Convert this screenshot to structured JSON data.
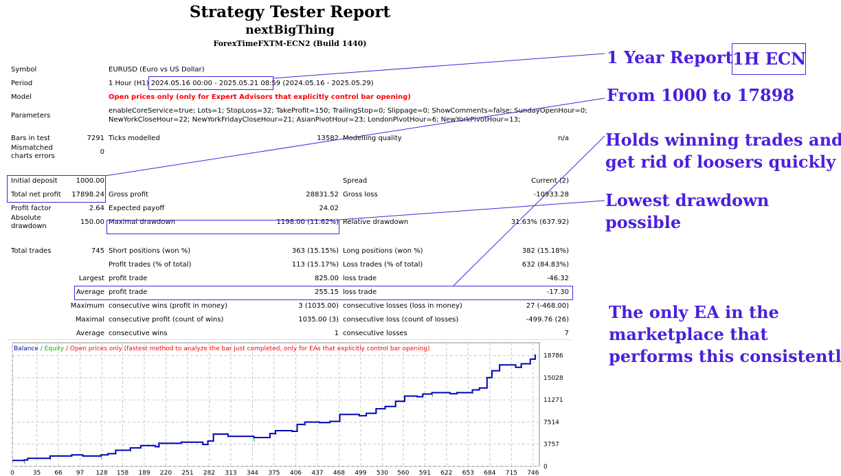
{
  "header": {
    "title": "Strategy Tester Report",
    "ea_name": "nextBigThing",
    "server": "ForexTimeFXTM-ECN2 (Build 1440)"
  },
  "info": {
    "symbol_label": "Symbol",
    "symbol": "EURUSD (Euro vs US Dollar)",
    "period_label": "Period",
    "period_prefix": "1 Hour (H1)",
    "period_range": "2024.05.16 00:00 - 2025.05.21 08:59",
    "period_suffix": "(2024.05.16 - 2025.05.29)",
    "model_label": "Model",
    "model": "Open prices only (only for Expert Advisors that explicitly control bar opening)",
    "parameters_label": "Parameters",
    "parameters_line1": "enableCoreService=true; Lots=1; StopLoss=32; TakeProfit=150; TrailingStop=0; Slippage=0; ShowComments=false; SundayOpenHour=0;",
    "parameters_line2": "NewYorkCloseHour=22; NewYorkFridayCloseHour=21; AsianPivotHour=23; LondonPivotHour=6; NewYorkPivotHour=13;"
  },
  "rows": [
    {
      "c1": "Bars in test",
      "v1": "7291",
      "c2": "Ticks modelled",
      "v2": "13582",
      "c3": "Modelling quality",
      "v3": "n/a"
    },
    {
      "c1": "Mismatched\ncharts errors",
      "v1": "0",
      "c2": "",
      "v2": "",
      "c3": "",
      "v3": ""
    },
    {
      "c1": "Initial deposit",
      "v1": "1000.00",
      "c2": "",
      "v2": "",
      "c3": "Spread",
      "v3": "Current (2)"
    },
    {
      "c1": "Total net profit",
      "v1": "17898.24",
      "c2": "Gross profit",
      "v2": "28831.52",
      "c3": "Gross loss",
      "v3": "-10933.28"
    },
    {
      "c1": "Profit factor",
      "v1": "2.64",
      "c2": "Expected payoff",
      "v2": "24.02",
      "c3": "",
      "v3": ""
    },
    {
      "c1": "Absolute\ndrawdown",
      "v1": "150.00",
      "c2": "Maximal drawdown",
      "v2": "1198.00 (11.62%)",
      "c3": "Relative drawdown",
      "v3": "31.63% (637.92)"
    },
    {
      "c1": "Total trades",
      "v1": "745",
      "c2": "Short positions (won %)",
      "v2": "363 (15.15%)",
      "c3": "Long positions (won %)",
      "v3": "382 (15.18%)"
    },
    {
      "c1": "",
      "v1": "",
      "c2": "Profit trades (% of total)",
      "v2": "113 (15.17%)",
      "c3": "Loss trades (% of total)",
      "v3": "632 (84.83%)"
    },
    {
      "c1": "",
      "v1": "Largest",
      "c2": "profit trade",
      "v2": "825.00",
      "c3": "loss trade",
      "v3": "-46.32"
    },
    {
      "c1": "",
      "v1": "Average",
      "c2": "profit trade",
      "v2": "255.15",
      "c3": "loss trade",
      "v3": "-17.30"
    },
    {
      "c1": "",
      "v1": "Maximum",
      "c2": "consecutive wins (profit in money)",
      "v2": "3 (1035.00)",
      "c3": "consecutive losses (loss in money)",
      "v3": "27 (-468.00)"
    },
    {
      "c1": "",
      "v1": "Maximal",
      "c2": "consecutive profit (count of wins)",
      "v2": "1035.00 (3)",
      "c3": "consecutive loss (count of losses)",
      "v3": "-499.76 (26)"
    },
    {
      "c1": "",
      "v1": "Average",
      "c2": "consecutive wins",
      "v2": "1",
      "c3": "consecutive losses",
      "v3": "7"
    }
  ],
  "annotations": {
    "report": "1 Year  Report",
    "badge": "1H ECN",
    "growth": "From 1000 to 17898",
    "holds_1": "Holds winning trades and",
    "holds_2": "get rid of loosers quickly",
    "drawdown_1": "Lowest drawdown",
    "drawdown_2": "possible",
    "only_1": "The only EA in the",
    "only_2": "marketplace that",
    "only_3": "performs this consistently",
    "color": "#4b1fdc"
  },
  "chart_data": {
    "type": "line",
    "legend": {
      "balance": "Balance",
      "sep1": " / ",
      "equity": "Equity",
      "sep2": " / ",
      "note": "Open prices only (fastest method to analyze the bar just completed, only for EAs that explicitly control bar opening)"
    },
    "legend_placement": "top-left",
    "grid": true,
    "colors": {
      "balance": "#0000b4",
      "equity": "#00b400",
      "note": "#ff0000"
    },
    "x_ticks": [
      0,
      35,
      66,
      97,
      128,
      158,
      189,
      220,
      251,
      282,
      313,
      344,
      375,
      406,
      437,
      468,
      499,
      530,
      560,
      591,
      622,
      653,
      684,
      715,
      746
    ],
    "y_ticks": [
      0,
      3757,
      7514,
      11271,
      15028,
      18786
    ],
    "xlim": [
      0,
      755
    ],
    "ylim": [
      0,
      20500
    ],
    "series": [
      {
        "name": "Balance",
        "x": [
          0,
          17,
          22,
          43,
          54,
          85,
          101,
          127,
          137,
          148,
          169,
          184,
          205,
          210,
          242,
          273,
          280,
          288,
          309,
          346,
          364,
          369,
          377,
          401,
          408,
          419,
          440,
          455,
          469,
          497,
          507,
          521,
          534,
          549,
          562,
          580,
          588,
          601,
          627,
          637,
          659,
          669,
          680,
          687,
          698,
          721,
          729,
          742,
          749
        ],
        "values": [
          1000,
          1100,
          1370,
          1370,
          1760,
          1960,
          1760,
          1960,
          2150,
          2740,
          3130,
          3520,
          3330,
          3910,
          4110,
          3720,
          4300,
          5480,
          5090,
          4890,
          4890,
          5560,
          6060,
          5940,
          7120,
          7510,
          7430,
          7630,
          8800,
          8600,
          8990,
          9770,
          10170,
          11030,
          11930,
          11810,
          12280,
          12510,
          12320,
          12510,
          12980,
          13290,
          15050,
          16220,
          17200,
          16810,
          17400,
          18180,
          18980
        ]
      }
    ]
  }
}
